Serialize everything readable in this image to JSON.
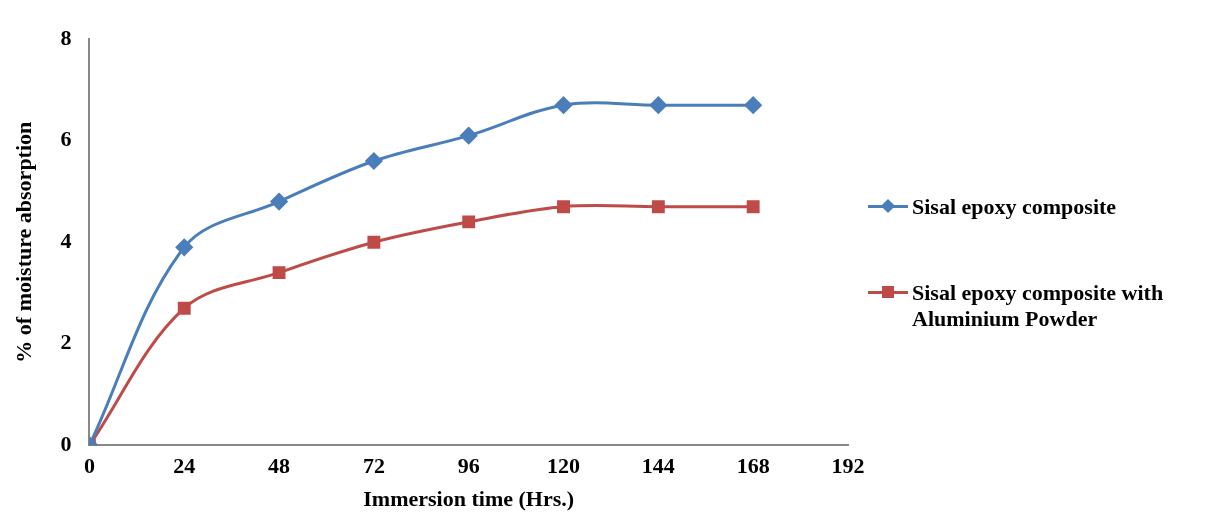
{
  "chart_data": {
    "type": "line",
    "xlabel": "Immersion time (Hrs.)",
    "ylabel": "% of moisture absorption",
    "x": [
      0,
      24,
      48,
      72,
      96,
      120,
      144,
      168
    ],
    "series": [
      {
        "name": "Sisal epoxy composite",
        "color": "#4a7ebb",
        "marker": "diamond",
        "values": [
          0,
          3.9,
          4.8,
          5.6,
          6.1,
          6.7,
          6.7,
          6.7
        ]
      },
      {
        "name": "Sisal epoxy composite with Aluminium Powder",
        "color": "#be4b48",
        "marker": "square",
        "values": [
          0,
          2.7,
          3.4,
          4.0,
          4.4,
          4.7,
          4.7,
          4.7
        ]
      }
    ],
    "xlim": [
      0,
      192
    ],
    "xticks": [
      0,
      24,
      48,
      72,
      96,
      120,
      144,
      168,
      192
    ],
    "ylim": [
      0,
      8
    ],
    "yticks": [
      0,
      2,
      4,
      6,
      8
    ],
    "grid": false,
    "legend": "right"
  }
}
